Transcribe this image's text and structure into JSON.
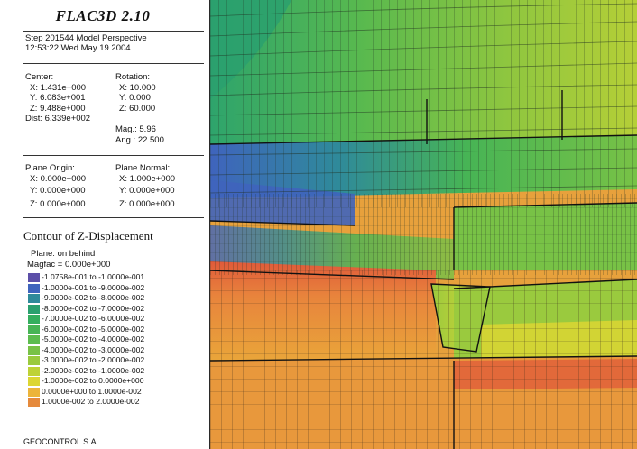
{
  "header": {
    "title": "FLAC3D 2.10",
    "step_line": "Step 201544  Model Perspective",
    "time_line": "12:53:22 Wed May 19 2004"
  },
  "view_params": {
    "center_label": "Center:",
    "center_x": "X: 1.431e+000",
    "center_y": "Y: 6.083e+001",
    "center_z": "Z: 9.488e+000",
    "dist": "Dist: 6.339e+002",
    "rotation_label": "Rotation:",
    "rot_x": "X:  10.000",
    "rot_y": "Y:   0.000",
    "rot_z": "Z:  60.000",
    "mag": "Mag.:    5.96",
    "ang": "Ang.:  22.500"
  },
  "plane": {
    "origin_label": "Plane Origin:",
    "origin_x": "X: 0.000e+000",
    "origin_y": "Y: 0.000e+000",
    "origin_z": "Z: 0.000e+000",
    "normal_label": "Plane Normal:",
    "normal_x": "X: 1.000e+000",
    "normal_y": "Y: 0.000e+000",
    "normal_z": "Z: 0.000e+000"
  },
  "contour": {
    "title": "Contour of Z-Displacement",
    "plane_line": "Plane: on behind",
    "magfac_line": "Magfac =  0.000e+000",
    "legend": [
      {
        "label": "-1.0758e-001 to -1.0000e-001",
        "color": "#5c4fa8"
      },
      {
        "label": "-1.0000e-001 to -9.0000e-002",
        "color": "#3f64bd"
      },
      {
        "label": "-9.0000e-002 to -8.0000e-002",
        "color": "#2f8a9a"
      },
      {
        "label": "-8.0000e-002 to -7.0000e-002",
        "color": "#2aa06e"
      },
      {
        "label": "-7.0000e-002 to -6.0000e-002",
        "color": "#34ae5e"
      },
      {
        "label": "-6.0000e-002 to -5.0000e-002",
        "color": "#47b455"
      },
      {
        "label": "-5.0000e-002 to -4.0000e-002",
        "color": "#5cbc4e"
      },
      {
        "label": "-4.0000e-002 to -3.0000e-002",
        "color": "#78c246"
      },
      {
        "label": "-3.0000e-002 to -2.0000e-002",
        "color": "#9aca3e"
      },
      {
        "label": "-2.0000e-002 to -1.0000e-002",
        "color": "#bed236"
      },
      {
        "label": "-1.0000e-002 to  0.0000e+000",
        "color": "#dcd632"
      },
      {
        "label": "0.0000e+000 to  1.0000e-002",
        "color": "#ecb43a"
      },
      {
        "label": "1.0000e-002 to  2.0000e-002",
        "color": "#e58a3c"
      }
    ],
    "footer": "GEOCONTROL S.A."
  }
}
